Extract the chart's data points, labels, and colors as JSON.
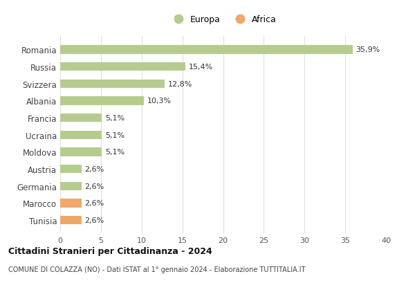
{
  "countries": [
    "Romania",
    "Russia",
    "Svizzera",
    "Albania",
    "Francia",
    "Ucraina",
    "Moldova",
    "Austria",
    "Germania",
    "Marocco",
    "Tunisia"
  ],
  "values": [
    35.9,
    15.4,
    12.8,
    10.3,
    5.1,
    5.1,
    5.1,
    2.6,
    2.6,
    2.6,
    2.6
  ],
  "labels": [
    "35,9%",
    "15,4%",
    "12,8%",
    "10,3%",
    "5,1%",
    "5,1%",
    "5,1%",
    "2,6%",
    "2,6%",
    "2,6%",
    "2,6%"
  ],
  "continents": [
    "Europa",
    "Europa",
    "Europa",
    "Europa",
    "Europa",
    "Europa",
    "Europa",
    "Europa",
    "Europa",
    "Africa",
    "Africa"
  ],
  "color_europa": "#b5cc8e",
  "color_africa": "#f0a868",
  "bg_color": "#ffffff",
  "grid_color": "#e0e0e0",
  "xlim": [
    0,
    40
  ],
  "xticks": [
    0,
    5,
    10,
    15,
    20,
    25,
    30,
    35,
    40
  ],
  "title": "Cittadini Stranieri per Cittadinanza - 2024",
  "subtitle": "COMUNE DI COLAZZA (NO) - Dati ISTAT al 1° gennaio 2024 - Elaborazione TUTTITALIA.IT",
  "legend_europa": "Europa",
  "legend_africa": "Africa",
  "bar_height": 0.5
}
